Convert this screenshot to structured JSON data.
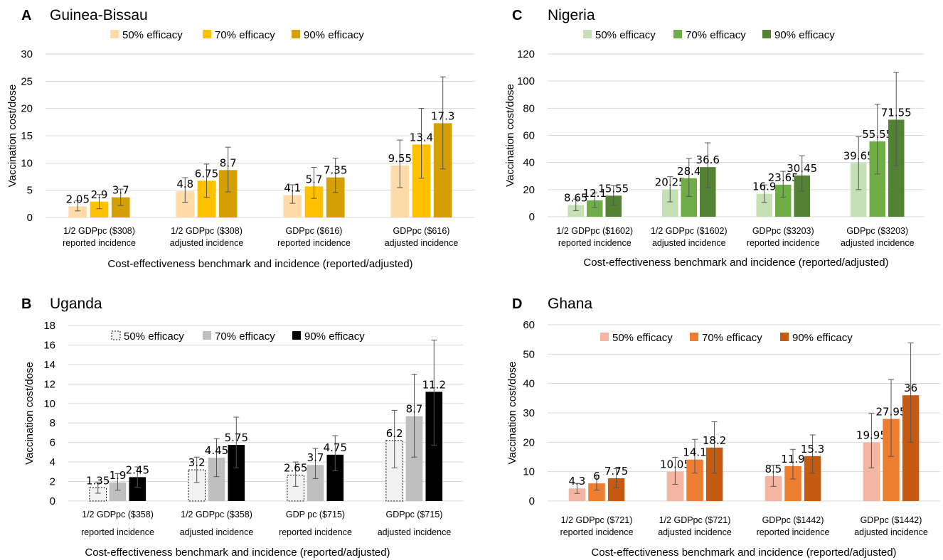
{
  "chart_data": [
    {
      "panel": "A",
      "title": "Guinea-Bissau",
      "type": "bar",
      "ylabel": "Vaccination cost/dose",
      "xlabel": "Cost-effectiveness benchmark and incidence (reported/adjusted)",
      "ylim": [
        0,
        30
      ],
      "yticks": [
        "0",
        "5",
        "10",
        "15",
        "20",
        "25",
        "30"
      ],
      "categories": [
        [
          "1/2 GDPpc ($308)",
          "reported incidence"
        ],
        [
          "1/2 GDPpc ($308)",
          "adjusted incidence"
        ],
        [
          "GDPpc ($616)",
          "reported incidence"
        ],
        [
          "GDPpc ($616)",
          "adjusted incidence"
        ]
      ],
      "series": [
        {
          "name": "50% efficacy",
          "color": "#ffdba8",
          "values": [
            2.05,
            4.8,
            4.1,
            9.55
          ],
          "labels": [
            "2.05",
            "4.8",
            "4.1",
            "9.55"
          ],
          "err_low": [
            1.2,
            2.8,
            2.6,
            5.5
          ],
          "err_high": [
            3.1,
            7.3,
            6.0,
            14.2
          ]
        },
        {
          "name": "70% efficacy",
          "color": "#ffc000",
          "values": [
            2.9,
            6.75,
            5.7,
            13.4
          ],
          "labels": [
            "2.9",
            "6.75",
            "5.7",
            "13.4"
          ],
          "err_low": [
            1.6,
            3.7,
            3.5,
            7.2
          ],
          "err_high": [
            4.2,
            9.8,
            9.2,
            20.0
          ]
        },
        {
          "name": "90% efficacy",
          "color": "#d4a006",
          "values": [
            3.7,
            8.7,
            7.35,
            17.3
          ],
          "labels": [
            "3.7",
            "8.7",
            "7.35",
            "17.3"
          ],
          "err_low": [
            2.2,
            4.7,
            4.6,
            8.9
          ],
          "err_high": [
            5.2,
            12.9,
            10.9,
            25.8
          ]
        }
      ],
      "legend": "top"
    },
    {
      "panel": "B",
      "title": "Uganda",
      "type": "bar",
      "ylabel": "Vaccination cost/dose",
      "xlabel": "Cost-effectiveness benchmark and incidence (reported/adjusted)",
      "ylim": [
        0,
        18
      ],
      "yticks": [
        "0",
        "2",
        "4",
        "6",
        "8",
        "10",
        "12",
        "14",
        "16",
        "18"
      ],
      "categories": [
        [
          "1/2 GDPpc ($358)",
          "reported incidence"
        ],
        [
          "1/2 GDPpc ($358)",
          "adjusted incidence"
        ],
        [
          "GDP pc ($715)",
          "reported incidence"
        ],
        [
          "GDPpc ($715)",
          "adjusted incidence"
        ]
      ],
      "series": [
        {
          "name": "50% efficacy",
          "color": "#f2f2f2",
          "values": [
            1.35,
            3.2,
            2.65,
            6.2
          ],
          "labels": [
            "1.35",
            "3.2",
            "2.65",
            "6.2"
          ],
          "err_low": [
            0.8,
            1.9,
            1.5,
            3.4
          ],
          "err_high": [
            1.9,
            4.5,
            4.0,
            9.3
          ]
        },
        {
          "name": "70% efficacy",
          "color": "#bfbfbf",
          "values": [
            1.9,
            4.45,
            3.7,
            8.7
          ],
          "labels": [
            "1.9",
            "4.45",
            "3.7",
            "8.7"
          ],
          "err_low": [
            1.1,
            2.5,
            2.3,
            4.5
          ],
          "err_high": [
            2.8,
            6.4,
            5.4,
            13.0
          ]
        },
        {
          "name": "90% efficacy",
          "color": "#000000",
          "values": [
            2.45,
            5.75,
            4.75,
            11.2
          ],
          "labels": [
            "2.45",
            "5.75",
            "4.75",
            "11.2"
          ],
          "err_low": [
            1.4,
            3.4,
            3.1,
            5.7
          ],
          "err_high": [
            3.5,
            8.6,
            6.7,
            16.5
          ]
        }
      ],
      "legend": "top"
    },
    {
      "panel": "C",
      "title": "Nigeria",
      "type": "bar",
      "ylabel": "Vaccination cost/dose",
      "xlabel": "Cost-effectiveness benchmark and incidence (reported/adjusted)",
      "ylim": [
        0,
        120
      ],
      "yticks": [
        "0",
        "20",
        "40",
        "60",
        "80",
        "100",
        "120"
      ],
      "categories": [
        [
          "1/2 GDPpc ($1602)",
          "reported incidence"
        ],
        [
          "1/2 GDPpc ($1602)",
          "adjusted incidence"
        ],
        [
          "GDPpc ($3203)",
          "reported incidence"
        ],
        [
          "GDPpc ($3203)",
          "adjusted incidence"
        ]
      ],
      "series": [
        {
          "name": "50% efficacy",
          "color": "#c5e0b4",
          "values": [
            8.65,
            20.25,
            16.9,
            39.65
          ],
          "labels": [
            "8.65",
            "20.25",
            "16.9",
            "39.65"
          ],
          "err_low": [
            4.5,
            11.0,
            10.5,
            20.0
          ],
          "err_high": [
            13.0,
            29.5,
            23.5,
            59.0
          ]
        },
        {
          "name": "70% efficacy",
          "color": "#70ad47",
          "values": [
            12.1,
            28.4,
            23.65,
            55.55
          ],
          "labels": [
            "12.1",
            "28.4",
            "23.65",
            "55.55"
          ],
          "err_low": [
            7.0,
            15.0,
            14.5,
            31.5
          ],
          "err_high": [
            17.5,
            43.0,
            33.5,
            83.0
          ]
        },
        {
          "name": "90% efficacy",
          "color": "#548235",
          "values": [
            15.55,
            36.6,
            30.45,
            71.55
          ],
          "labels": [
            "15.55",
            "36.6",
            "30.45",
            "71.55"
          ],
          "err_low": [
            8.5,
            21.5,
            19.0,
            37.5
          ],
          "err_high": [
            23.0,
            54.5,
            45.0,
            106.5
          ]
        }
      ],
      "legend": "top"
    },
    {
      "panel": "D",
      "title": "Ghana",
      "type": "bar",
      "ylabel": "Vaccination cost/dose",
      "xlabel": "Cost-effectiveness benchmark and incidence (reported/adjusted)",
      "ylim": [
        0,
        60
      ],
      "yticks": [
        "0",
        "10",
        "20",
        "30",
        "40",
        "50",
        "60"
      ],
      "categories": [
        [
          "1/2 GDPpc ($721)",
          "reported incidence"
        ],
        [
          "1/2 GDPpc ($721)",
          "adjusted incidence"
        ],
        [
          "GDPpc ($1442)",
          "reported incidence"
        ],
        [
          "GDPpc ($1442)",
          "adjusted incidence"
        ]
      ],
      "series": [
        {
          "name": "50% efficacy",
          "color": "#f4b6a3",
          "values": [
            4.3,
            10.05,
            8.5,
            19.95
          ],
          "labels": [
            "4.3",
            "10.05",
            "8.5",
            "19.95"
          ],
          "err_low": [
            2.6,
            5.7,
            5.0,
            11.3
          ],
          "err_high": [
            6.0,
            14.9,
            12.2,
            29.8
          ]
        },
        {
          "name": "70% efficacy",
          "color": "#ed7d31",
          "values": [
            6,
            14.1,
            11.9,
            27.95
          ],
          "labels": [
            "6",
            "14.1",
            "11.9",
            "27.95"
          ],
          "err_low": [
            3.7,
            9.5,
            7.5,
            15.2
          ],
          "err_high": [
            8.8,
            21.0,
            17.6,
            41.4
          ]
        },
        {
          "name": "90% efficacy",
          "color": "#c55a11",
          "values": [
            7.75,
            18.2,
            15.3,
            36
          ],
          "labels": [
            "7.75",
            "18.2",
            "15.3",
            "36"
          ],
          "err_low": [
            4.5,
            9.5,
            9.5,
            20.0
          ],
          "err_high": [
            11.0,
            27.0,
            22.5,
            53.8
          ]
        }
      ],
      "legend": "top"
    }
  ]
}
